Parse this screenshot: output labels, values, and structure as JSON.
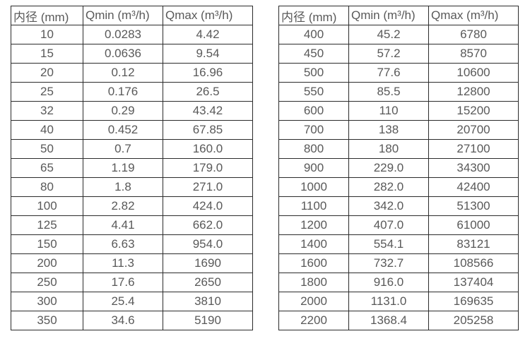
{
  "colors": {
    "background": "#ffffff",
    "border": "#2b2b2b",
    "text": "#595959"
  },
  "tables": [
    {
      "name": "flow-rate-table-small-diameters",
      "headers": [
        "内径 (mm)",
        "Qmin (m³/h)",
        "Qmax (m³/h)"
      ],
      "rows": [
        [
          "10",
          "0.0283",
          "4.42"
        ],
        [
          "15",
          "0.0636",
          "9.54"
        ],
        [
          "20",
          "0.12",
          "16.96"
        ],
        [
          "25",
          "0.176",
          "26.5"
        ],
        [
          "32",
          "0.29",
          "43.42"
        ],
        [
          "40",
          "0.452",
          "67.85"
        ],
        [
          "50",
          "0.7",
          "160.0"
        ],
        [
          "65",
          "1.19",
          "179.0"
        ],
        [
          "80",
          "1.8",
          "271.0"
        ],
        [
          "100",
          "2.82",
          "424.0"
        ],
        [
          "125",
          "4.41",
          "662.0"
        ],
        [
          "150",
          "6.63",
          "954.0"
        ],
        [
          "200",
          "11.3",
          "1690"
        ],
        [
          "250",
          "17.6",
          "2650"
        ],
        [
          "300",
          "25.4",
          "3810"
        ],
        [
          "350",
          "34.6",
          "5190"
        ]
      ]
    },
    {
      "name": "flow-rate-table-large-diameters",
      "headers": [
        "内径 (mm)",
        "Qmin (m³/h)",
        "Qmax (m³/h)"
      ],
      "rows": [
        [
          "400",
          "45.2",
          "6780"
        ],
        [
          "450",
          "57.2",
          "8570"
        ],
        [
          "500",
          "77.6",
          "10600"
        ],
        [
          "550",
          "85.5",
          "12800"
        ],
        [
          "600",
          "110",
          "15200"
        ],
        [
          "700",
          "138",
          "20700"
        ],
        [
          "800",
          "180",
          "27100"
        ],
        [
          "900",
          "229.0",
          "34300"
        ],
        [
          "1000",
          "282.0",
          "42400"
        ],
        [
          "1100",
          "342.0",
          "51300"
        ],
        [
          "1200",
          "407.0",
          "61000"
        ],
        [
          "1400",
          "554.1",
          "83121"
        ],
        [
          "1600",
          "732.7",
          "108566"
        ],
        [
          "1800",
          "916.0",
          "137404"
        ],
        [
          "2000",
          "1131.0",
          "169635"
        ],
        [
          "2200",
          "1368.4",
          "205258"
        ]
      ]
    }
  ]
}
